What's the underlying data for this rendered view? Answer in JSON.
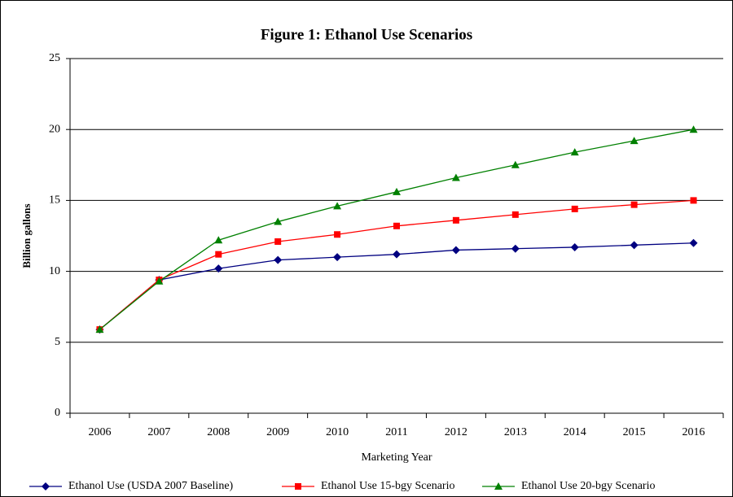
{
  "chart_data": {
    "type": "line",
    "title": "Figure 1:  Ethanol Use Scenarios",
    "x_label": "Marketing Year",
    "y_label": "Billion gallons",
    "categories": [
      "2006",
      "2007",
      "2008",
      "2009",
      "2010",
      "2011",
      "2012",
      "2013",
      "2014",
      "2015",
      "2016"
    ],
    "series": [
      {
        "name": "Ethanol Use (USDA 2007 Baseline)",
        "color": "#000080",
        "marker": "diamond",
        "values": [
          5.9,
          9.4,
          10.2,
          10.8,
          11.0,
          11.2,
          11.5,
          11.6,
          11.7,
          11.85,
          12.0
        ]
      },
      {
        "name": "Ethanol Use 15-bgy Scenario",
        "color": "#ff0000",
        "marker": "square",
        "values": [
          5.9,
          9.4,
          11.2,
          12.1,
          12.6,
          13.2,
          13.6,
          14.0,
          14.4,
          14.7,
          15.0
        ]
      },
      {
        "name": "Ethanol Use 20-bgy Scenario",
        "color": "#008000",
        "marker": "triangle",
        "values": [
          5.9,
          9.3,
          12.2,
          13.5,
          14.6,
          15.6,
          16.6,
          17.5,
          18.4,
          19.2,
          20.0
        ]
      }
    ],
    "ylim": [
      0,
      25
    ],
    "yticks": [
      0,
      5,
      10,
      15,
      20,
      25
    ],
    "grid": true,
    "legend": "bottom"
  }
}
